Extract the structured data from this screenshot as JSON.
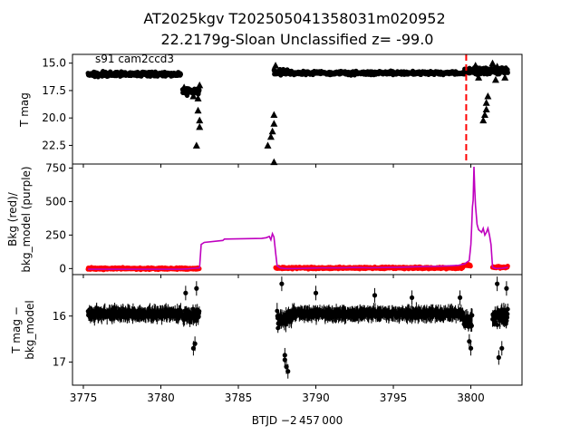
{
  "title_line1": "AT2025kgv  T202505041358031m020952",
  "title_line2": "22.2179g-Sloan Unclassified z= -99.0",
  "annotation": "s91 cam2ccd3",
  "xlabel": "BTJD −2 457 000",
  "colors": {
    "points": "#000000",
    "bkg": "#ff0000",
    "model": "#bf00bf",
    "event": "#ff0000"
  },
  "chart_data": [
    {
      "type": "scatter",
      "panel": "top",
      "ylabel": "T mag",
      "ylim": [
        24.2,
        14.2
      ],
      "yinvert": true,
      "xlim": [
        3774.3,
        3803.3
      ],
      "yticks": [
        15.0,
        17.5,
        20.0,
        22.5
      ],
      "ytick_labels": [
        "15.0",
        "17.5",
        "20.0",
        "22.5"
      ],
      "event_line_x": 3799.7,
      "segments": [
        {
          "x0": 3775.3,
          "x1": 3781.3,
          "y": 16.0,
          "noise": 0.35
        },
        {
          "x0": 3781.4,
          "x1": 3782.5,
          "y": 17.6,
          "noise": 0.5
        },
        {
          "x0": 3787.3,
          "x1": 3788.3,
          "y": 15.8,
          "noise": 0.55
        },
        {
          "x0": 3788.3,
          "x1": 3799.6,
          "y": 15.9,
          "noise": 0.3
        },
        {
          "x0": 3799.6,
          "x1": 3802.4,
          "y": 15.7,
          "noise": 0.6
        }
      ],
      "upper_limits": [
        [
          3781.5,
          17.2
        ],
        [
          3782.1,
          18.0
        ],
        [
          3782.3,
          17.5
        ],
        [
          3782.5,
          17.0
        ],
        [
          3782.4,
          18.2
        ],
        [
          3782.4,
          19.3
        ],
        [
          3782.5,
          20.2
        ],
        [
          3782.5,
          20.8
        ],
        [
          3782.3,
          22.5
        ],
        [
          3786.9,
          22.5
        ],
        [
          3787.1,
          21.7
        ],
        [
          3787.2,
          21.2
        ],
        [
          3787.3,
          20.5
        ],
        [
          3787.3,
          19.7
        ],
        [
          3787.4,
          15.2
        ],
        [
          3787.3,
          24.0
        ],
        [
          3800.8,
          20.2
        ],
        [
          3800.9,
          19.7
        ],
        [
          3801.0,
          19.2
        ],
        [
          3801.0,
          18.6
        ],
        [
          3801.1,
          18.0
        ],
        [
          3800.6,
          15.5
        ],
        [
          3800.3,
          15.2
        ],
        [
          3801.4,
          15.0
        ],
        [
          3801.7,
          15.3
        ],
        [
          3802.3,
          15.5
        ],
        [
          3800.5,
          16.3
        ],
        [
          3801.6,
          16.5
        ],
        [
          3802.2,
          16.3
        ]
      ]
    },
    {
      "type": "line",
      "panel": "middle",
      "ylabel": "Bkg (red)/\nbkg_model (purple)",
      "ylim": [
        -45,
        780
      ],
      "xlim": [
        3774.3,
        3803.3
      ],
      "yticks": [
        0,
        250,
        500,
        750
      ],
      "ytick_labels": [
        "0",
        "250",
        "500",
        "750"
      ],
      "bkg_segments": [
        {
          "x0": 3775.3,
          "x1": 3782.5,
          "y": 0,
          "noise": 14
        },
        {
          "x0": 3787.4,
          "x1": 3799.5,
          "y": 5,
          "noise": 14
        },
        {
          "x0": 3799.5,
          "x1": 3800.0,
          "y": 25,
          "noise": 14
        },
        {
          "x0": 3801.4,
          "x1": 3802.4,
          "y": 10,
          "noise": 14
        }
      ],
      "model_line": [
        [
          3775.3,
          -5
        ],
        [
          3781.3,
          -5
        ],
        [
          3781.8,
          -2
        ],
        [
          3782.2,
          2
        ],
        [
          3782.5,
          5
        ],
        [
          3782.6,
          180
        ],
        [
          3782.8,
          195
        ],
        [
          3784.0,
          210
        ],
        [
          3784.1,
          220
        ],
        [
          3786.5,
          225
        ],
        [
          3786.8,
          230
        ],
        [
          3787.0,
          240
        ],
        [
          3787.1,
          215
        ],
        [
          3787.2,
          260
        ],
        [
          3787.3,
          235
        ],
        [
          3787.4,
          120
        ],
        [
          3787.5,
          20
        ],
        [
          3787.7,
          5
        ],
        [
          3788.0,
          0
        ],
        [
          3788.5,
          0
        ],
        [
          3789.5,
          3
        ],
        [
          3790.5,
          6
        ],
        [
          3791.5,
          5
        ],
        [
          3792.5,
          8
        ],
        [
          3793.5,
          6
        ],
        [
          3794.5,
          8
        ],
        [
          3795.5,
          10
        ],
        [
          3796.5,
          14
        ],
        [
          3797.5,
          16
        ],
        [
          3798.5,
          20
        ],
        [
          3799.2,
          24
        ],
        [
          3799.6,
          35
        ],
        [
          3799.9,
          60
        ],
        [
          3800.0,
          180
        ],
        [
          3800.05,
          300
        ],
        [
          3800.1,
          460
        ],
        [
          3800.15,
          510
        ],
        [
          3800.2,
          760
        ],
        [
          3800.25,
          600
        ],
        [
          3800.3,
          470
        ],
        [
          3800.4,
          330
        ],
        [
          3800.5,
          290
        ],
        [
          3800.6,
          280
        ],
        [
          3800.7,
          270
        ],
        [
          3800.8,
          300
        ],
        [
          3800.9,
          250
        ],
        [
          3801.0,
          270
        ],
        [
          3801.1,
          300
        ],
        [
          3801.2,
          250
        ],
        [
          3801.3,
          180
        ],
        [
          3801.4,
          10
        ],
        [
          3801.6,
          0
        ],
        [
          3802.0,
          2
        ],
        [
          3802.4,
          10
        ]
      ]
    },
    {
      "type": "scatter",
      "panel": "bottom",
      "ylabel": "T mag −\nbkg_model",
      "ylim": [
        17.5,
        15.1
      ],
      "yinvert": true,
      "xlim": [
        3774.3,
        3803.3
      ],
      "yticks": [
        16,
        17
      ],
      "ytick_labels": [
        "16",
        "17"
      ],
      "segments": [
        {
          "x0": 3775.3,
          "x1": 3781.3,
          "y": 15.95,
          "noise": 0.14
        },
        {
          "x0": 3781.4,
          "x1": 3782.5,
          "y": 16.0,
          "noise": 0.22
        },
        {
          "x0": 3787.5,
          "x1": 3788.5,
          "y": 16.05,
          "noise": 0.3
        },
        {
          "x0": 3788.5,
          "x1": 3799.5,
          "y": 15.95,
          "noise": 0.12
        },
        {
          "x0": 3799.5,
          "x1": 3800.1,
          "y": 16.1,
          "noise": 0.28
        },
        {
          "x0": 3801.4,
          "x1": 3802.4,
          "y": 16.0,
          "noise": 0.3
        }
      ],
      "outliers": [
        [
          3788.1,
          17.1
        ],
        [
          3788.0,
          16.85
        ],
        [
          3788.2,
          17.2
        ],
        [
          3788.0,
          16.95
        ],
        [
          3782.2,
          16.6
        ],
        [
          3782.1,
          16.7
        ],
        [
          3781.6,
          15.5
        ],
        [
          3782.3,
          15.4
        ],
        [
          3799.9,
          16.55
        ],
        [
          3800.0,
          16.7
        ],
        [
          3801.8,
          16.9
        ],
        [
          3802.0,
          16.7
        ],
        [
          3801.7,
          15.3
        ],
        [
          3802.3,
          15.4
        ],
        [
          3796.2,
          15.6
        ],
        [
          3793.8,
          15.55
        ],
        [
          3790.0,
          15.5
        ],
        [
          3787.8,
          15.3
        ],
        [
          3799.3,
          15.6
        ]
      ]
    }
  ],
  "xaxis": {
    "ticks": [
      3775,
      3780,
      3785,
      3790,
      3795,
      3800
    ],
    "tick_labels": [
      "3775",
      "3780",
      "3785",
      "3790",
      "3795",
      "3800"
    ]
  }
}
